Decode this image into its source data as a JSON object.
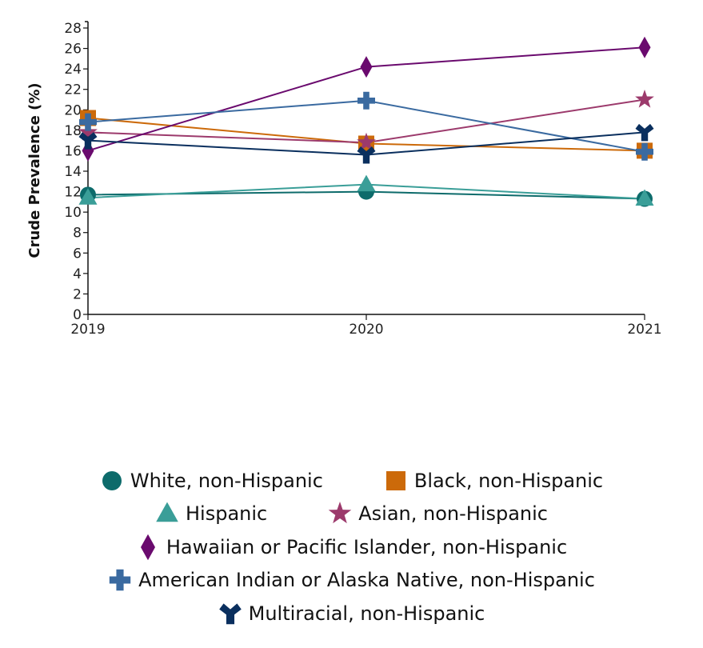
{
  "chart_data": {
    "type": "line",
    "title": "",
    "xlabel": "",
    "ylabel": "Crude Prevalence (%)",
    "x": [
      "2019",
      "2020",
      "2021"
    ],
    "ylim": [
      0,
      28
    ],
    "yticks": [
      "0",
      "2",
      "4",
      "6",
      "8",
      "10",
      "12",
      "14",
      "16",
      "18",
      "20",
      "22",
      "24",
      "26",
      "28"
    ],
    "grid": false,
    "legend_position": "bottom",
    "series": [
      {
        "name": "White, non-Hispanic",
        "marker": "circle",
        "color": "#0d6b6b",
        "values": [
          11.7,
          12.0,
          11.3
        ]
      },
      {
        "name": "Black, non-Hispanic",
        "marker": "square",
        "color": "#cc6a0a",
        "values": [
          19.2,
          16.7,
          16.0
        ]
      },
      {
        "name": "Hispanic",
        "marker": "triangle",
        "color": "#3a9e98",
        "values": [
          11.4,
          12.7,
          11.3
        ]
      },
      {
        "name": "Asian, non-Hispanic",
        "marker": "star",
        "color": "#9c3a6c",
        "values": [
          17.8,
          16.8,
          21.0
        ]
      },
      {
        "name": "Hawaiian or Pacific Islander, non-Hispanic",
        "marker": "diamond",
        "color": "#6a0a6e",
        "values": [
          16.0,
          24.2,
          26.1
        ]
      },
      {
        "name": "American Indian or Alaska Native, non-Hispanic",
        "marker": "cross",
        "color": "#3a6aa0",
        "values": [
          18.8,
          20.9,
          15.9
        ]
      },
      {
        "name": "Multiracial, non-Hispanic",
        "marker": "wye",
        "color": "#0a2f5e",
        "values": [
          17.0,
          15.6,
          17.8
        ]
      }
    ]
  },
  "legend_rows": [
    [
      0,
      1
    ],
    [
      2,
      3
    ],
    [
      4
    ],
    [
      5
    ],
    [
      6
    ]
  ]
}
